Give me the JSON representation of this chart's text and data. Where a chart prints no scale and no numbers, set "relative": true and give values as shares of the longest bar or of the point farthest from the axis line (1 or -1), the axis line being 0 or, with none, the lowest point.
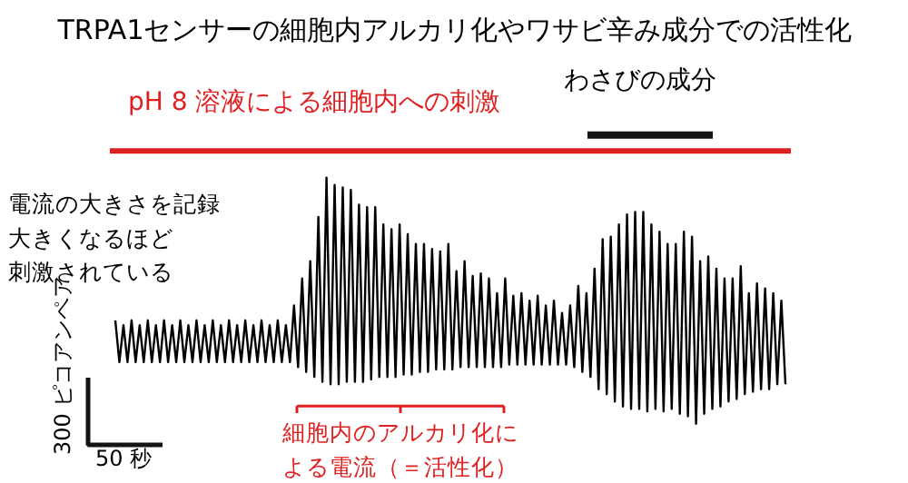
{
  "chart_data": {
    "type": "line",
    "title": "TRPA1センサーの細胞内アルカリ化やワサビ辛み成分での活性化",
    "annotations": [
      "pH 8 溶液による細胞内への刺激",
      "わさびの成分",
      "細胞内のアルカリ化による電流（＝活性化）",
      "電流の大きさを記録大きくなるほど刺激されている",
      "300 ピコアンペア",
      "50 秒"
    ],
    "relative": true,
    "categories": [
      null,
      null,
      null,
      null,
      null,
      null,
      null,
      null,
      null,
      null,
      null,
      null,
      null,
      null,
      null,
      null,
      null,
      null,
      null,
      null,
      null,
      null,
      null,
      null,
      null,
      null,
      null,
      null,
      null,
      null,
      null,
      null,
      null,
      null,
      null,
      null,
      null,
      null,
      null,
      null,
      null,
      null,
      null,
      null,
      null,
      null,
      null,
      null,
      null,
      null,
      null,
      null,
      null,
      null,
      null,
      null,
      null,
      null,
      null,
      null,
      null,
      null,
      null,
      null,
      null,
      null,
      null,
      null,
      null,
      null,
      null,
      null,
      null,
      null,
      null,
      null,
      null,
      null,
      null,
      null,
      null,
      null,
      null,
      null,
      null,
      null,
      null,
      null,
      null,
      null,
      null,
      null,
      null,
      null,
      null,
      null,
      null,
      null,
      null,
      null,
      null,
      null,
      null,
      null,
      null,
      null,
      null,
      null,
      null,
      null,
      null,
      null,
      null,
      null,
      null,
      null,
      null,
      null,
      null,
      null,
      null,
      null,
      null,
      null,
      null,
      null,
      null,
      null,
      null,
      null,
      null,
      null,
      null,
      null,
      null,
      null,
      null,
      null,
      null,
      null,
      null,
      null,
      null,
      null,
      null,
      null,
      null,
      null,
      null,
      null,
      null,
      null,
      null,
      null,
      null,
      null,
      null,
      null,
      null,
      null,
      null,
      null,
      null,
      null,
      null,
      null
    ],
    "series": [
      {
        "color": "#000000",
        "values": [
          0.42,
          0.25,
          0.4,
          0.25,
          0.42,
          0.25,
          0.4,
          0.25,
          0.42,
          0.25,
          0.4,
          0.25,
          0.42,
          0.25,
          0.4,
          0.25,
          0.42,
          0.25,
          0.4,
          0.25,
          0.42,
          0.25,
          0.4,
          0.25,
          0.42,
          0.25,
          0.4,
          0.25,
          0.42,
          0.25,
          0.4,
          0.25,
          0.42,
          0.25,
          0.4,
          0.25,
          0.42,
          0.25,
          0.4,
          0.25,
          0.42,
          0.25,
          0.4,
          0.25,
          0.48,
          0.23,
          0.59,
          0.21,
          0.66,
          0.19,
          0.84,
          0.17,
          1.0,
          0.16,
          0.97,
          0.16,
          0.96,
          0.17,
          0.95,
          0.17,
          0.89,
          0.17,
          0.88,
          0.18,
          0.88,
          0.19,
          0.81,
          0.19,
          0.79,
          0.19,
          0.81,
          0.2,
          0.77,
          0.2,
          0.73,
          0.21,
          0.73,
          0.21,
          0.71,
          0.22,
          0.7,
          0.22,
          0.73,
          0.22,
          0.62,
          0.23,
          0.66,
          0.23,
          0.6,
          0.23,
          0.61,
          0.23,
          0.59,
          0.23,
          0.53,
          0.23,
          0.59,
          0.24,
          0.52,
          0.24,
          0.53,
          0.24,
          0.5,
          0.24,
          0.52,
          0.24,
          0.48,
          0.24,
          0.5,
          0.24,
          0.45,
          0.24,
          0.48,
          0.23,
          0.56,
          0.21,
          0.53,
          0.19,
          0.63,
          0.14,
          0.75,
          0.12,
          0.76,
          0.09,
          0.81,
          0.07,
          0.85,
          0.06,
          0.86,
          0.06,
          0.86,
          0.05,
          0.81,
          0.06,
          0.78,
          0.05,
          0.73,
          0.06,
          0.73,
          0.04,
          0.78,
          0.03,
          0.76,
          0.0,
          0.66,
          0.04,
          0.68,
          0.06,
          0.63,
          0.07,
          0.59,
          0.09,
          0.59,
          0.1,
          0.64,
          0.12,
          0.53,
          0.13,
          0.57,
          0.14,
          0.55,
          0.14,
          0.53,
          0.16,
          0.5,
          0.16
        ]
      }
    ]
  }
}
